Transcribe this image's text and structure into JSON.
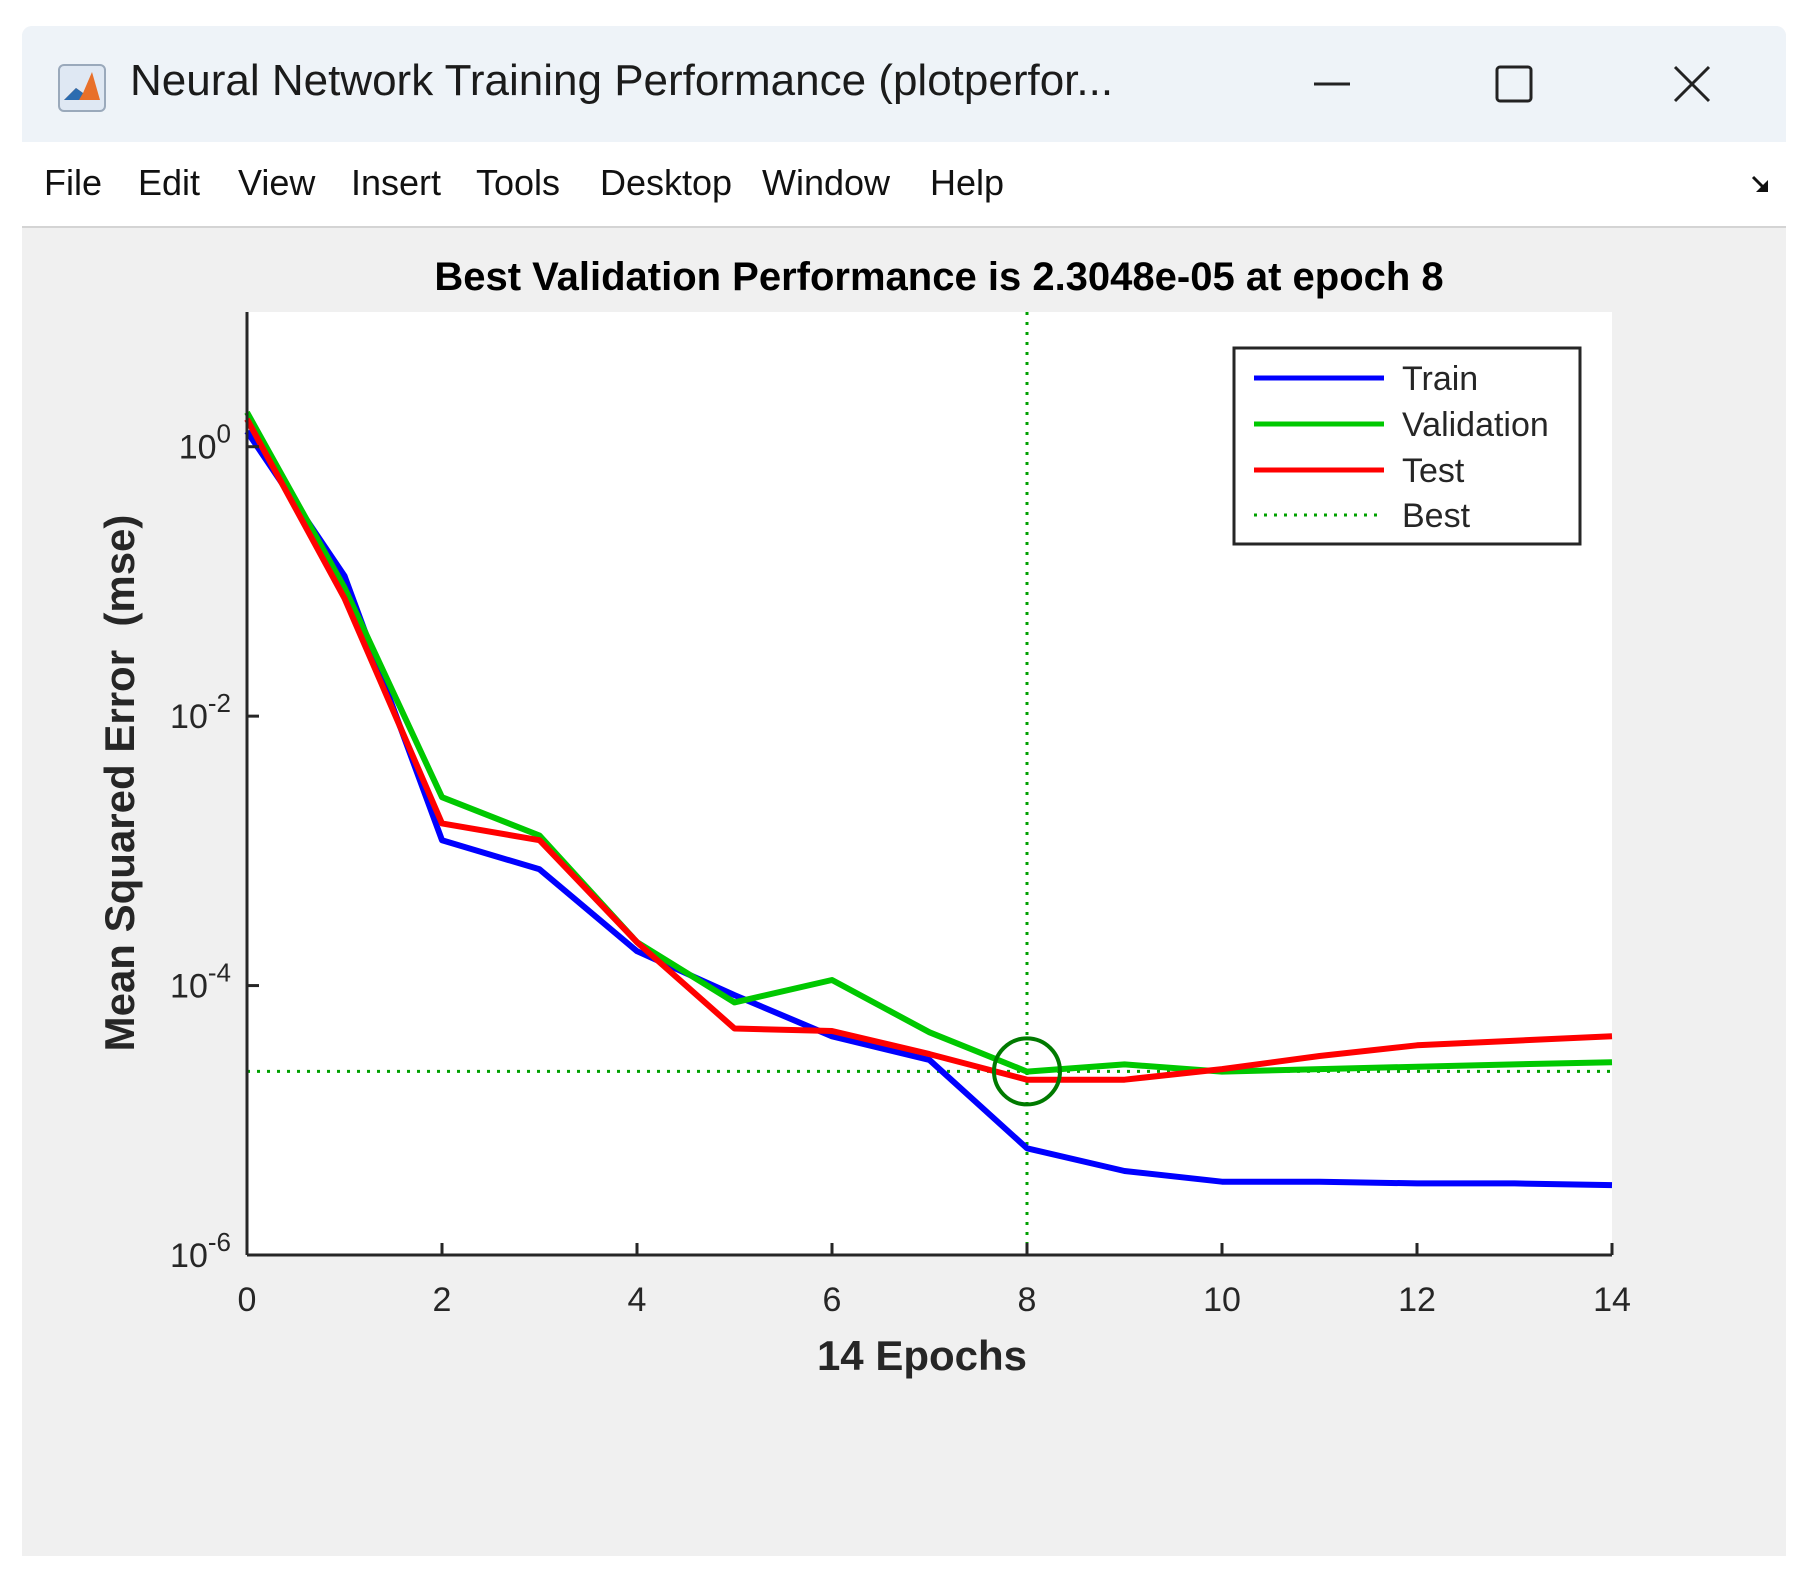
{
  "window": {
    "title": "Neural Network Training Performance (plotperfor...",
    "icon": "matlab-icon"
  },
  "controls": {
    "minimize": "minimize-icon",
    "maximize": "maximize-icon",
    "close": "close-icon"
  },
  "menu": {
    "items": [
      "File",
      "Edit",
      "View",
      "Insert",
      "Tools",
      "Desktop",
      "Window",
      "Help"
    ],
    "dock_icon": "dock-arrow-icon"
  },
  "colors": {
    "train": "#0000ff",
    "validation": "#00c800",
    "test": "#ff0000",
    "best": "#00a000",
    "axes": "#262626"
  },
  "chart_data": {
    "type": "line",
    "title": "Best Validation Performance is 2.3048e-05 at epoch 8",
    "xlabel": "14 Epochs",
    "ylabel": "Mean Squared Error  (mse)",
    "yscale": "log",
    "xlim": [
      0,
      14
    ],
    "ylim": [
      1e-06,
      10
    ],
    "x_ticks": [
      0,
      2,
      4,
      6,
      8,
      10,
      12,
      14
    ],
    "y_ticks": [
      {
        "value": 1,
        "base": "10",
        "exp": "0"
      },
      {
        "value": 0.01,
        "base": "10",
        "exp": "-2"
      },
      {
        "value": 0.0001,
        "base": "10",
        "exp": "-4"
      },
      {
        "value": 1e-06,
        "base": "10",
        "exp": "-6"
      }
    ],
    "x": [
      0,
      1,
      2,
      3,
      4,
      5,
      6,
      7,
      8,
      9,
      10,
      11,
      12,
      13,
      14
    ],
    "series": [
      {
        "name": "Train",
        "color": "#0000ff",
        "values": [
          1.3,
          0.11,
          0.0012,
          0.00073,
          0.00018,
          8.5e-05,
          4.2e-05,
          2.8e-05,
          6.2e-06,
          4.2e-06,
          3.5e-06,
          3.5e-06,
          3.4e-06,
          3.4e-06,
          3.3e-06
        ]
      },
      {
        "name": "Validation",
        "color": "#00c800",
        "values": [
          1.8,
          0.09,
          0.0025,
          0.0013,
          0.00021,
          7.5e-05,
          0.00011,
          4.5e-05,
          2.3e-05,
          2.6e-05,
          2.3e-05,
          2.4e-05,
          2.5e-05,
          2.6e-05,
          2.7e-05
        ]
      },
      {
        "name": "Test",
        "color": "#ff0000",
        "values": [
          1.6,
          0.075,
          0.0016,
          0.0012,
          0.00021,
          4.8e-05,
          4.6e-05,
          3.1e-05,
          2e-05,
          2e-05,
          2.4e-05,
          3e-05,
          3.6e-05,
          3.9e-05,
          4.2e-05
        ]
      }
    ],
    "best": {
      "label": "Best",
      "epoch": 8,
      "value": 2.3048e-05
    },
    "legend": {
      "position": "top-right",
      "entries": [
        "Train",
        "Validation",
        "Test",
        "Best"
      ]
    }
  }
}
